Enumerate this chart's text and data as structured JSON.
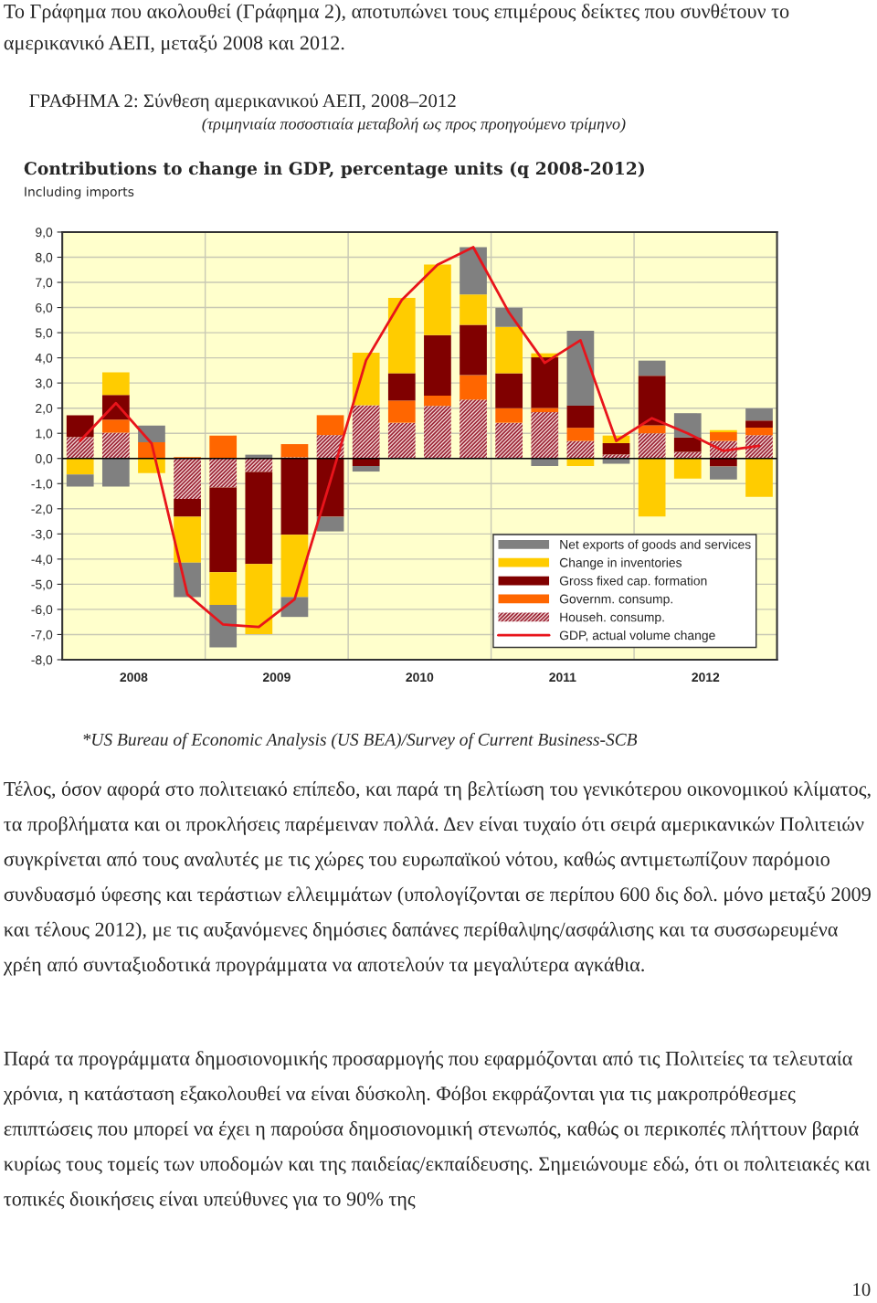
{
  "chart_data": {
    "type": "bar",
    "stacked": true,
    "title": "ΓΡΑΦΗΜΑ 2: Σύνθεση αμερικανικού ΑΕΠ, 2008–2012",
    "subtitle": "(τριμηνιαία ποσοστιαία μεταβολή ως προς προηγούμενο τρίμηνο)",
    "annotations": [
      "Το Γράφημα που ακολουθεί (Γράφημα 2), αποτυπώνει τους επιμέρους δείκτες που συνθέτουν το αμερικανικό ΑΕΠ, μεταξύ 2008 και 2012.",
      "Contributions to change in GDP, percentage units (q 2008-2012)",
      "Including imports",
      "*US Bureau of Economic Analysis (US BEA)/Survey of Current Business-SCB",
      "Τέλος, όσον αφορά στο πολιτειακό επίπεδο, και παρά τη βελτίωση του γενικότερου οικονομικού κλίματος, τα προβλήματα και οι προκλήσεις παρέμειναν πολλά. Δεν είναι τυχαίο ότι σειρά αμερικανικών Πολιτειών συγκρίνεται από τους αναλυτές με τις χώρες του ευρωπαϊκού νότου, καθώς αντιμετωπίζουν παρόμοιο συνδυασμό ύφεσης και τεράστιων ελλειμμάτων (υπολογίζονται σε περίπου 600 δις δολ. μόνο μεταξύ 2009 και τέλους 2012), με τις αυξανόμενες δημόσιες δαπάνες περίθαλψης/ασφάλισης και τα συσσωρευμένα χρέη από συνταξιοδοτικά προγράμματα να αποτελούν τα μεγαλύτερα αγκάθια.",
      "Παρά τα προγράμματα δημοσιονομικής προσαρμογής που εφαρμόζονται από τις Πολιτείες τα τελευταία χρόνια, η κατάσταση εξακολουθεί να είναι δύσκολη. Φόβοι εκφράζονται για τις μακροπρόθεσμες επιπτώσεις που μπορεί να έχει η παρούσα δημοσιονομική στενωπός, καθώς οι περικοπές πλήττουν βαριά κυρίως τους τομείς των υποδομών και της παιδείας/εκπαίδευσης. Σημειώνουμε εδώ, ότι οι πολιτειακές και τοπικές διοικήσεις είναι υπεύθυνες για το 90% της",
      "10"
    ],
    "x": [
      2008.125,
      2008.375,
      2008.625,
      2008.875,
      2009.125,
      2009.375,
      2009.625,
      2009.875,
      2010.125,
      2010.375,
      2010.625,
      2010.875,
      2011.125,
      2011.375,
      2011.625,
      2011.875,
      2012.125,
      2012.375,
      2012.625,
      2012.875
    ],
    "xlim": [
      2008,
      2013
    ],
    "xticks": [
      {
        "value": 2008.5,
        "label": "2008"
      },
      {
        "value": 2009.5,
        "label": "2009"
      },
      {
        "value": 2010.5,
        "label": "2010"
      },
      {
        "value": 2011.5,
        "label": "2011"
      },
      {
        "value": 2012.5,
        "label": "2012"
      }
    ],
    "ylim": [
      -8,
      9
    ],
    "yticks": [
      {
        "value": -8,
        "label": "-8,0"
      },
      {
        "value": -7,
        "label": "-7,0"
      },
      {
        "value": -6,
        "label": "-6,0"
      },
      {
        "value": -5,
        "label": "-5,0"
      },
      {
        "value": -4,
        "label": "-4,0"
      },
      {
        "value": -3,
        "label": "-3,0"
      },
      {
        "value": -2,
        "label": "-2,0"
      },
      {
        "value": -1,
        "label": "-1,0"
      },
      {
        "value": 0,
        "label": "0,0"
      },
      {
        "value": 1,
        "label": "1,0"
      },
      {
        "value": 2,
        "label": "2,0"
      },
      {
        "value": 3,
        "label": "3,0"
      },
      {
        "value": 4,
        "label": "4,0"
      },
      {
        "value": 5,
        "label": "5,0"
      },
      {
        "value": 6,
        "label": "6,0"
      },
      {
        "value": 7,
        "label": "7,0"
      },
      {
        "value": 8,
        "label": "8,0"
      },
      {
        "value": 9,
        "label": "9,0"
      }
    ],
    "grid": "y",
    "legend": "bottom right",
    "ref_lines": [
      {
        "axis": "x",
        "value": 2009,
        "color": "#c8c8b4"
      },
      {
        "axis": "x",
        "value": 2010,
        "color": "#c8c8b4"
      },
      {
        "axis": "x",
        "value": 2011,
        "color": "#c8c8b4"
      },
      {
        "axis": "x",
        "value": 2012,
        "color": "#c8c8b4"
      }
    ],
    "series": [
      {
        "name": "Househ. consump.",
        "color": "#9b2335",
        "values": [
          0.85,
          1.03,
          null,
          -1.61,
          -1.15,
          -0.54,
          0.05,
          0.93,
          2.12,
          1.42,
          2.09,
          2.34,
          1.42,
          1.84,
          0.7,
          0.16,
          1.0,
          0.26,
          0.7,
          0.93
        ]
      },
      {
        "name": "Governm. consump.",
        "color": "#ff6600",
        "values": [
          null,
          0.51,
          0.64,
          0.05,
          0.91,
          null,
          0.52,
          0.79,
          null,
          0.88,
          0.41,
          0.97,
          0.58,
          0.17,
          0.52,
          null,
          0.32,
          null,
          0.34,
          0.3
        ]
      },
      {
        "name": "Gross fixed cap. formation",
        "color": "#800000",
        "values": [
          0.87,
          0.98,
          null,
          -0.71,
          -3.37,
          -3.66,
          -3.03,
          -2.32,
          -0.3,
          1.09,
          2.4,
          2.0,
          1.39,
          2.01,
          0.88,
          0.45,
          1.97,
          0.57,
          -0.32,
          0.28
        ]
      },
      {
        "name": "Change in inventories",
        "color": "#ffcc00",
        "values": [
          -0.64,
          0.9,
          -0.58,
          -1.82,
          -1.3,
          -2.78,
          -2.48,
          null,
          2.08,
          2.99,
          2.81,
          1.21,
          1.84,
          0.16,
          -0.3,
          0.3,
          -2.31,
          -0.8,
          0.09,
          -1.53
        ]
      },
      {
        "name": "Net exports of goods and services",
        "color": "#808080",
        "values": [
          -0.48,
          -1.12,
          0.67,
          -1.37,
          -1.69,
          0.15,
          -0.79,
          -0.58,
          -0.22,
          null,
          null,
          1.88,
          0.76,
          -0.3,
          2.98,
          -0.21,
          0.6,
          0.97,
          -0.52,
          0.48
        ]
      },
      {
        "name": "GDP, actual volume change",
        "type": "line",
        "color": "#e8141b",
        "values": [
          0.7,
          2.2,
          0.6,
          -5.4,
          -6.6,
          -6.7,
          -5.6,
          -0.9,
          3.9,
          6.3,
          7.7,
          8.4,
          5.8,
          3.8,
          4.7,
          0.7,
          1.6,
          1.0,
          0.3,
          0.5
        ]
      }
    ]
  }
}
